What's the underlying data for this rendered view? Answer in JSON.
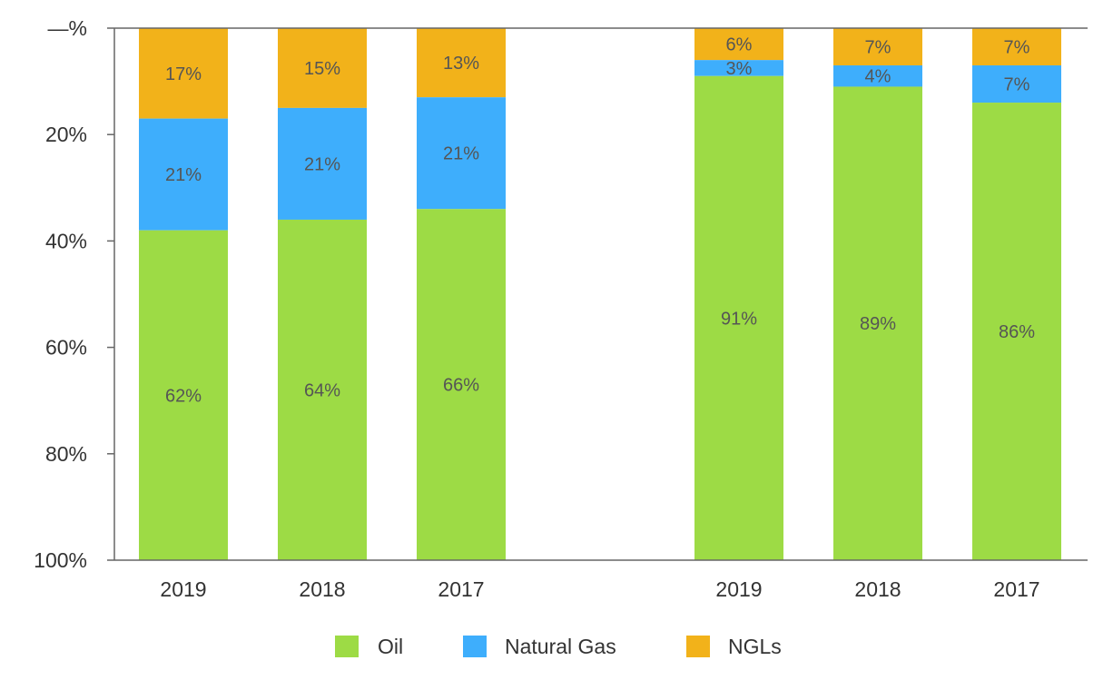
{
  "chart_data": {
    "type": "bar",
    "stacked": true,
    "orientation": "vertical",
    "y_inverted": true,
    "ylim": [
      0,
      100
    ],
    "y_ticks": [
      {
        "value": 0,
        "label": "—%"
      },
      {
        "value": 20,
        "label": "20%"
      },
      {
        "value": 40,
        "label": "40%"
      },
      {
        "value": 60,
        "label": "60%"
      },
      {
        "value": 80,
        "label": "80%"
      },
      {
        "value": 100,
        "label": "100%"
      }
    ],
    "groups": [
      {
        "categories": [
          "2019",
          "2018",
          "2017"
        ]
      },
      {
        "categories": [
          "2019",
          "2018",
          "2017"
        ]
      }
    ],
    "series": [
      {
        "name": "NGLs",
        "color": "#f2b21a",
        "values": [
          17,
          15,
          13,
          6,
          7,
          7
        ],
        "labels": [
          "17%",
          "15%",
          "13%",
          "6%",
          "7%",
          "7%"
        ]
      },
      {
        "name": "Natural Gas",
        "color": "#3eaefc",
        "values": [
          21,
          21,
          21,
          3,
          4,
          7
        ],
        "labels": [
          "21%",
          "21%",
          "21%",
          "3%",
          "4%",
          "7%"
        ]
      },
      {
        "name": "Oil",
        "color": "#9ddb45",
        "values": [
          62,
          64,
          66,
          91,
          89,
          86
        ],
        "labels": [
          "62%",
          "64%",
          "66%",
          "91%",
          "89%",
          "86%"
        ]
      }
    ],
    "legend": {
      "placement": "bottom",
      "items": [
        {
          "name": "Oil",
          "color": "#9ddb45"
        },
        {
          "name": "Natural Gas",
          "color": "#3eaefc"
        },
        {
          "name": "NGLs",
          "color": "#f2b21a"
        }
      ]
    },
    "colors": {
      "axis": "#666666",
      "text": "#333333",
      "data_label": "#555555"
    }
  }
}
